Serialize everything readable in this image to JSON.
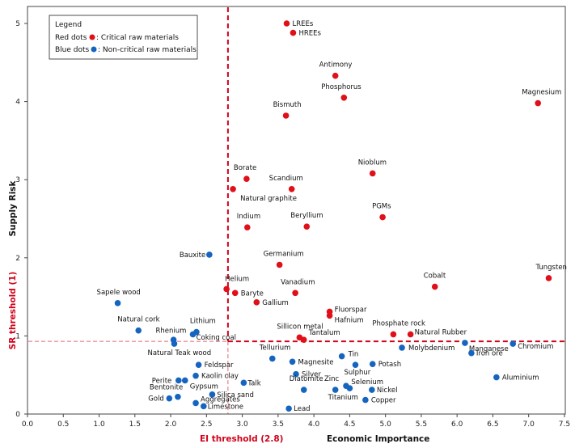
{
  "chart_data": {
    "type": "scatter",
    "xlabel": "Economic Importance",
    "ylabel": "Supply Risk",
    "xlim": [
      0,
      7.5
    ],
    "ylim": [
      0,
      5.2
    ],
    "x_ticks": [
      "0.0",
      "0.5",
      "1.0",
      "1.5",
      "2.0",
      "2.5",
      "3.0",
      "3.5",
      "4.0",
      "4.5",
      "5.0",
      "5.5",
      "6.0",
      "6.5",
      "7.0",
      "7.5"
    ],
    "y_ticks": [
      "0",
      "1",
      "2",
      "3",
      "4",
      "5"
    ],
    "grid": false,
    "thresholds": {
      "ei": {
        "value": 2.8,
        "label": "EI threshold (2.8)"
      },
      "sr": {
        "value": 0.93,
        "label": "SR threshold (1)"
      }
    },
    "legend": {
      "placement": "top-left",
      "title": "Legend",
      "red_text": "Red dots",
      "red_desc": ": Critical raw materials",
      "blue_text": "Blue dots",
      "blue_desc": ": Non-critical raw materials"
    },
    "colors": {
      "critical": "#e0101a",
      "noncritical": "#1565c0",
      "threshold": "#d0021b"
    },
    "series": [
      {
        "name": "Critical raw materials",
        "points": [
          {
            "label": "LREEs",
            "x": 3.62,
            "y": 5.0
          },
          {
            "label": "HREEs",
            "x": 3.71,
            "y": 4.88
          },
          {
            "label": "Antimony",
            "x": 4.3,
            "y": 4.33
          },
          {
            "label": "Phosphorus",
            "x": 4.42,
            "y": 4.05
          },
          {
            "label": "Magnesium",
            "x": 7.13,
            "y": 3.98
          },
          {
            "label": "Bismuth",
            "x": 3.61,
            "y": 3.82
          },
          {
            "label": "Nioblum",
            "x": 4.82,
            "y": 3.08
          },
          {
            "label": "Borate",
            "x": 3.06,
            "y": 3.01
          },
          {
            "label": "Scandium",
            "x": 3.69,
            "y": 2.88
          },
          {
            "label": "Natural graphite",
            "x": 2.87,
            "y": 2.88
          },
          {
            "label": "PGMs",
            "x": 4.96,
            "y": 2.52
          },
          {
            "label": "Indium",
            "x": 3.07,
            "y": 2.39
          },
          {
            "label": "Beryllium",
            "x": 3.9,
            "y": 2.4
          },
          {
            "label": "Germanium",
            "x": 3.52,
            "y": 1.91
          },
          {
            "label": "Tungsten",
            "x": 7.28,
            "y": 1.74
          },
          {
            "label": "Cobalt",
            "x": 5.69,
            "y": 1.63
          },
          {
            "label": "Helium",
            "x": 2.78,
            "y": 1.6
          },
          {
            "label": "Baryte",
            "x": 2.9,
            "y": 1.55
          },
          {
            "label": "Vanadium",
            "x": 3.74,
            "y": 1.55
          },
          {
            "label": "Gallium",
            "x": 3.2,
            "y": 1.43
          },
          {
            "label": "Fluorspar",
            "x": 4.22,
            "y": 1.31
          },
          {
            "label": "Hafnium",
            "x": 4.22,
            "y": 1.26
          },
          {
            "label": "Sillicon metal",
            "x": 3.8,
            "y": 0.98
          },
          {
            "label": "Tantalum",
            "x": 3.86,
            "y": 0.95
          },
          {
            "label": "Phosphate rock",
            "x": 5.11,
            "y": 1.02
          },
          {
            "label": "Natural Rubber",
            "x": 5.35,
            "y": 1.02
          }
        ]
      },
      {
        "name": "Non-critical raw materials",
        "points": [
          {
            "label": "Bauxite",
            "x": 2.54,
            "y": 2.04
          },
          {
            "label": "Sapele wood",
            "x": 1.26,
            "y": 1.42
          },
          {
            "label": "Natural cork",
            "x": 1.55,
            "y": 1.07
          },
          {
            "label": "Lithium",
            "x": 2.36,
            "y": 1.05
          },
          {
            "label": "Rhenium",
            "x": 2.31,
            "y": 1.02
          },
          {
            "label": "Coking coal",
            "x": 2.04,
            "y": 0.95
          },
          {
            "label": "Natural Teak wood",
            "x": 2.05,
            "y": 0.9
          },
          {
            "label": "Tellurium",
            "x": 3.42,
            "y": 0.71
          },
          {
            "label": "Tin",
            "x": 4.39,
            "y": 0.74
          },
          {
            "label": "Molybdenium",
            "x": 5.23,
            "y": 0.85
          },
          {
            "label": "Manganese",
            "x": 6.11,
            "y": 0.91
          },
          {
            "label": "Chromium",
            "x": 6.78,
            "y": 0.9
          },
          {
            "label": "Iron ore",
            "x": 6.2,
            "y": 0.78
          },
          {
            "label": "Magnesite",
            "x": 3.7,
            "y": 0.67
          },
          {
            "label": "Potash",
            "x": 4.82,
            "y": 0.64
          },
          {
            "label": "Sulphur",
            "x": 4.58,
            "y": 0.63
          },
          {
            "label": "Feldspar",
            "x": 2.39,
            "y": 0.63
          },
          {
            "label": "Silver",
            "x": 3.75,
            "y": 0.51
          },
          {
            "label": "Kaolin clay",
            "x": 2.35,
            "y": 0.49
          },
          {
            "label": "Perite",
            "x": 2.11,
            "y": 0.43
          },
          {
            "label": "Gypsum",
            "x": 2.2,
            "y": 0.43
          },
          {
            "label": "Talk",
            "x": 3.02,
            "y": 0.4
          },
          {
            "label": "Aluminium",
            "x": 6.55,
            "y": 0.47
          },
          {
            "label": "Zinc",
            "x": 4.45,
            "y": 0.36
          },
          {
            "label": "Selenium",
            "x": 4.5,
            "y": 0.33
          },
          {
            "label": "Diatomite",
            "x": 3.86,
            "y": 0.31
          },
          {
            "label": "Nickel",
            "x": 4.81,
            "y": 0.31
          },
          {
            "label": "Titanium",
            "x": 4.3,
            "y": 0.31
          },
          {
            "label": "Copper",
            "x": 4.72,
            "y": 0.18
          },
          {
            "label": "Silica sand",
            "x": 2.58,
            "y": 0.25
          },
          {
            "label": "Bentonite",
            "x": 2.1,
            "y": 0.22
          },
          {
            "label": "Gold",
            "x": 1.98,
            "y": 0.2
          },
          {
            "label": "Aggregates",
            "x": 2.35,
            "y": 0.14
          },
          {
            "label": "Limestone",
            "x": 2.46,
            "y": 0.1
          },
          {
            "label": "Lead",
            "x": 3.65,
            "y": 0.07
          }
        ]
      }
    ]
  },
  "labels": {
    "Antimony": [
      -20,
      -11
    ],
    "Phosphorus": [
      -28,
      -11
    ],
    "Magnesium": [
      -20,
      -11
    ],
    "Bismuth": [
      -16,
      -11
    ],
    "Nioblum": [
      -18,
      -11
    ],
    "Borate": [
      -16,
      -11
    ],
    "Scandium": [
      -28,
      -11
    ],
    "Natural graphite": [
      9,
      14
    ],
    "PGMs": [
      -13,
      -11
    ],
    "Indium": [
      -13,
      -11
    ],
    "Beryllium": [
      -20,
      -11
    ],
    "Germanium": [
      -20,
      -11
    ],
    "Tungsten": [
      -16,
      -11
    ],
    "Cobalt": [
      -14,
      -11
    ],
    "Helium": [
      -2,
      -10
    ],
    "Vanadium": [
      -18,
      -11
    ],
    "Fluorspar": [
      6,
      0
    ],
    "Hafnium": [
      6,
      8
    ],
    "Sillicon metal": [
      -28,
      -11
    ],
    "Tantalum": [
      6,
      -6
    ],
    "Phosphate rock": [
      -26,
      -11
    ],
    "Natural Rubber": [
      5,
      0
    ],
    "Bauxite": [
      -37,
      3
    ],
    "Sapele wood": [
      -26,
      -11
    ],
    "Natural cork": [
      -26,
      -11
    ],
    "Lithium": [
      -8,
      -11
    ],
    "Rhenium": [
      -46,
      -2
    ],
    "Coking coal": [
      28,
      0
    ],
    "Natural Teak wood": [
      -33,
      14
    ],
    "Tellurium": [
      -16,
      -11
    ],
    "Tin": [
      8,
      0
    ],
    "Molybdenium": [
      8,
      3
    ],
    "Manganese": [
      5,
      10
    ],
    "Chromium": [
      6,
      6
    ],
    "Iron ore": [
      6,
      3
    ],
    "Magnesite": [
      7,
      3
    ],
    "Potash": [
      7,
      3
    ],
    "Sulphur": [
      -14,
      12
    ],
    "Kaolin clay": [
      7,
      3
    ],
    "Perite": [
      -33,
      3
    ],
    "Gypsum": [
      6,
      10
    ],
    "Talk": [
      5,
      3
    ],
    "Aluminium": [
      7,
      3
    ],
    "Zinc": [
      -27,
      -6
    ],
    "Selenium": [
      2,
      -5
    ],
    "Diatomite": [
      -18,
      -11
    ],
    "Nickel": [
      6,
      3
    ],
    "Titanium": [
      -9,
      12
    ],
    "Copper": [
      7,
      3
    ],
    "Silica sand": [
      6,
      3
    ],
    "Bentonite": [
      -35,
      -9
    ],
    "Gold": [
      -26,
      3
    ],
    "Aggregates": [
      6,
      -2
    ],
    "Limestone": [
      5,
      3
    ],
    "Lead": [
      6,
      3
    ]
  }
}
